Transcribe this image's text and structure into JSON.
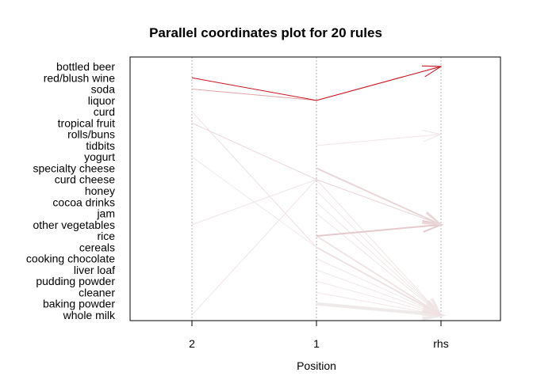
{
  "chart_data": {
    "type": "parallel-coordinates",
    "title": "Parallel coordinates plot for 20 rules",
    "xlabel": "Position",
    "axes": [
      "2",
      "1",
      "rhs"
    ],
    "items": [
      "bottled beer",
      "red/blush wine",
      "soda",
      "liquor",
      "curd",
      "tropical fruit",
      "rolls/buns",
      "tidbits",
      "yogurt",
      "specialty cheese",
      "curd cheese",
      "honey",
      "cocoa drinks",
      "jam",
      "other vegetables",
      "rice",
      "cereals",
      "cooking chocolate",
      "liver loaf",
      "pudding powder",
      "cleaner",
      "baking powder",
      "whole milk"
    ],
    "rules": [
      {
        "lhs": [
          "red/blush wine",
          "liquor"
        ],
        "rhs": "bottled beer",
        "color": "#c8101c",
        "width": 1
      },
      {
        "lhs": [
          "soda",
          "liquor"
        ],
        "rhs": "bottled beer",
        "color": "#e0a3a8",
        "width": 1
      },
      {
        "lhs": [
          "tidbits"
        ],
        "rhs": "rolls/buns",
        "color": "#f1e4e5",
        "width": 1
      },
      {
        "lhs": [
          "tropical fruit",
          "curd cheese"
        ],
        "rhs": "other vegetables",
        "color": "#ecd6d8",
        "width": 1
      },
      {
        "lhs": [
          "specialty cheese"
        ],
        "rhs": "other vegetables",
        "color": "#ead6d7",
        "width": 2
      },
      {
        "lhs": [
          "rice"
        ],
        "rhs": "other vegetables",
        "color": "#e6c9cc",
        "width": 2
      },
      {
        "lhs": [
          "curd",
          "cereals"
        ],
        "rhs": "whole milk",
        "color": "#efdfe0",
        "width": 1
      },
      {
        "lhs": [
          "other vegetables",
          "curd cheese"
        ],
        "rhs": "whole milk",
        "color": "#f1e4e5",
        "width": 1
      },
      {
        "lhs": [
          "whole milk",
          "curd cheese"
        ],
        "rhs": "other vegetables",
        "color": "#f1e4e5",
        "width": 1
      },
      {
        "lhs": [
          "yogurt",
          "cereals"
        ],
        "rhs": "whole milk",
        "color": "#f2e8e9",
        "width": 1
      },
      {
        "lhs": [
          "honey"
        ],
        "rhs": "whole milk",
        "color": "#f0e6e7",
        "width": 1
      },
      {
        "lhs": [
          "cocoa drinks"
        ],
        "rhs": "whole milk",
        "color": "#f0e6e7",
        "width": 1
      },
      {
        "lhs": [
          "jam"
        ],
        "rhs": "whole milk",
        "color": "#f0e6e7",
        "width": 1
      },
      {
        "lhs": [
          "rice"
        ],
        "rhs": "whole milk",
        "color": "#f0e4e5",
        "width": 2
      },
      {
        "lhs": [
          "cereals"
        ],
        "rhs": "whole milk",
        "color": "#efe3e4",
        "width": 2
      },
      {
        "lhs": [
          "cooking chocolate"
        ],
        "rhs": "whole milk",
        "color": "#f0e6e7",
        "width": 1
      },
      {
        "lhs": [
          "liver loaf"
        ],
        "rhs": "whole milk",
        "color": "#f0e6e7",
        "width": 1
      },
      {
        "lhs": [
          "pudding powder"
        ],
        "rhs": "whole milk",
        "color": "#f0e6e7",
        "width": 1
      },
      {
        "lhs": [
          "cleaner"
        ],
        "rhs": "whole milk",
        "color": "#f0e6e7",
        "width": 1
      },
      {
        "lhs": [
          "baking powder"
        ],
        "rhs": "whole milk",
        "color": "#eeeaea",
        "width": 4
      }
    ],
    "grid": true,
    "legend": "none"
  }
}
